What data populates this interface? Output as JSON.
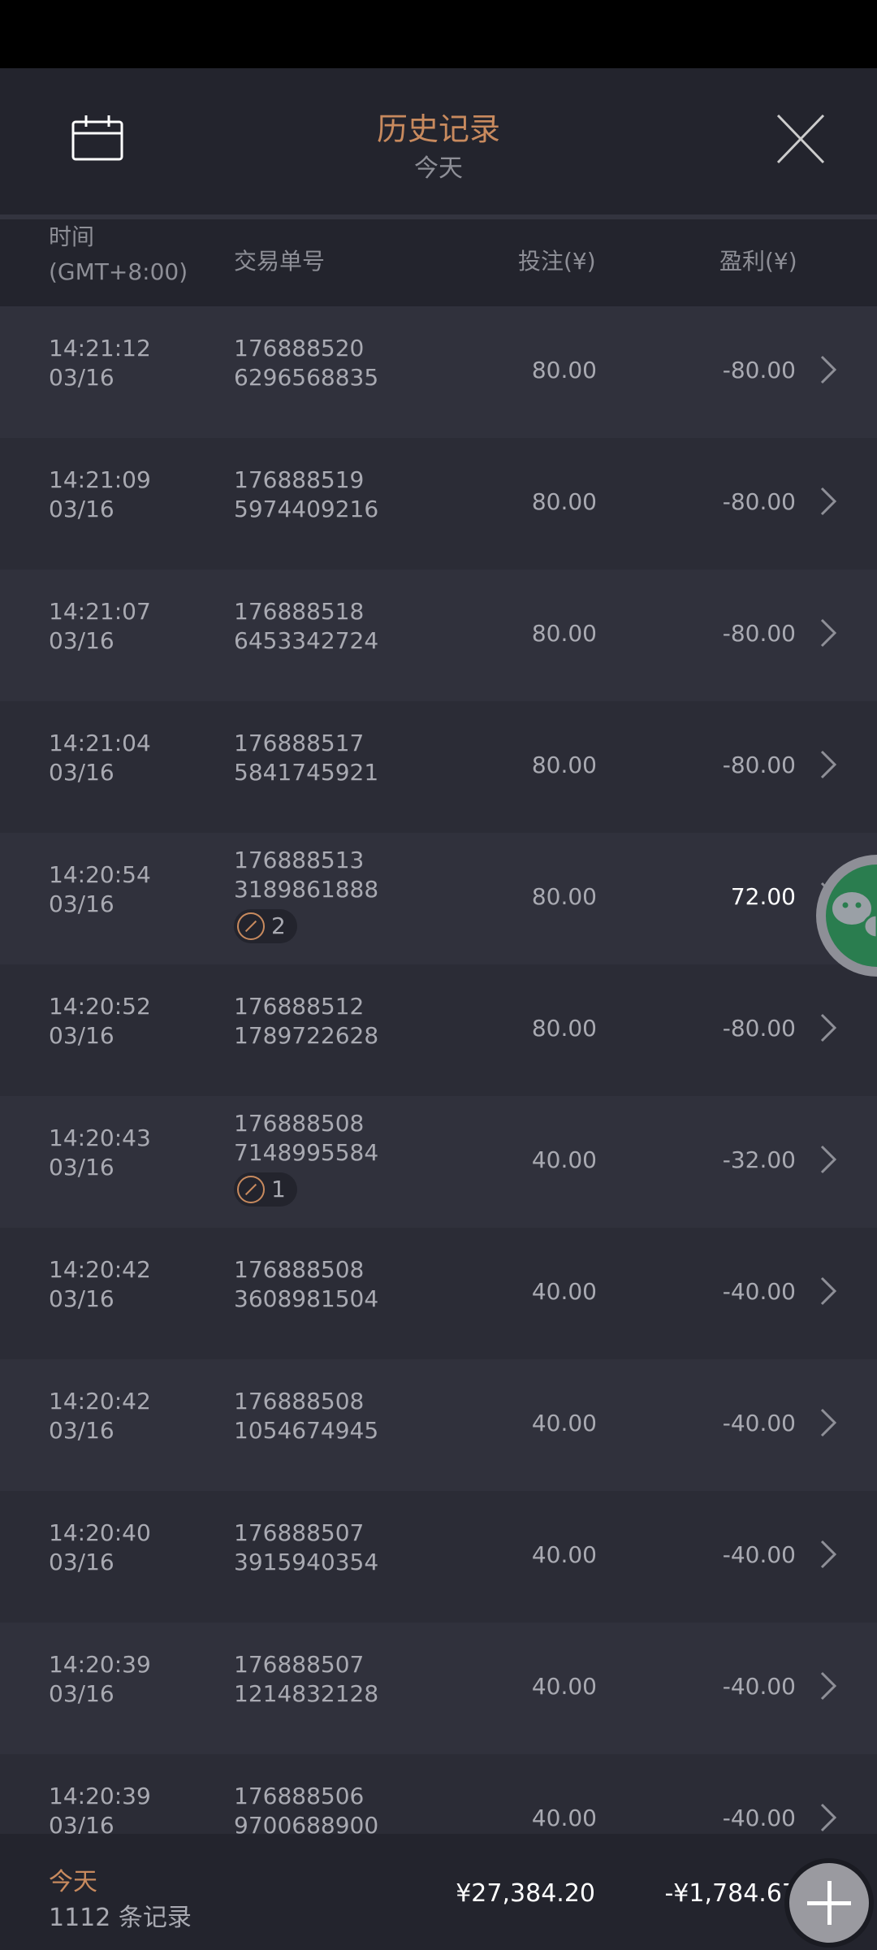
{
  "header": {
    "title": "历史记录",
    "subtitle": "今天",
    "left_icon": "calendar-icon",
    "right_icon": "close-icon"
  },
  "columns": {
    "time": "时间",
    "timezone": "(GMT+8:00)",
    "order": "交易单号",
    "bet": "投注(¥)",
    "profit": "盈利(¥)"
  },
  "rows": [
    {
      "time": "14:21:12",
      "date": "03/16",
      "order1": "176888520",
      "order2": "6296568835",
      "bet": "80.00",
      "profit": "-80.00"
    },
    {
      "time": "14:21:09",
      "date": "03/16",
      "order1": "176888519",
      "order2": "5974409216",
      "bet": "80.00",
      "profit": "-80.00"
    },
    {
      "time": "14:21:07",
      "date": "03/16",
      "order1": "176888518",
      "order2": "6453342724",
      "bet": "80.00",
      "profit": "-80.00"
    },
    {
      "time": "14:21:04",
      "date": "03/16",
      "order1": "176888517",
      "order2": "5841745921",
      "bet": "80.00",
      "profit": "-80.00"
    },
    {
      "time": "14:20:54",
      "date": "03/16",
      "order1": "176888513",
      "order2": "3189861888",
      "badge": "2",
      "bet": "80.00",
      "profit": "72.00"
    },
    {
      "time": "14:20:52",
      "date": "03/16",
      "order1": "176888512",
      "order2": "1789722628",
      "bet": "80.00",
      "profit": "-80.00"
    },
    {
      "time": "14:20:43",
      "date": "03/16",
      "order1": "176888508",
      "order2": "7148995584",
      "badge": "1",
      "bet": "40.00",
      "profit": "-32.00"
    },
    {
      "time": "14:20:42",
      "date": "03/16",
      "order1": "176888508",
      "order2": "3608981504",
      "bet": "40.00",
      "profit": "-40.00"
    },
    {
      "time": "14:20:42",
      "date": "03/16",
      "order1": "176888508",
      "order2": "1054674945",
      "bet": "40.00",
      "profit": "-40.00"
    },
    {
      "time": "14:20:40",
      "date": "03/16",
      "order1": "176888507",
      "order2": "3915940354",
      "bet": "40.00",
      "profit": "-40.00"
    },
    {
      "time": "14:20:39",
      "date": "03/16",
      "order1": "176888507",
      "order2": "1214832128",
      "bet": "40.00",
      "profit": "-40.00"
    },
    {
      "time": "14:20:39",
      "date": "03/16",
      "order1": "176888506",
      "order2": "9700688900",
      "bet": "40.00",
      "profit": "-40.00"
    }
  ],
  "footer": {
    "period": "今天",
    "count": "1112 条记录",
    "total_bet": "¥27,384.20",
    "total_profit": "-¥1,784.67"
  },
  "floating": {
    "chat_icon": "wechat-icon",
    "add_icon": "plus-icon"
  },
  "colors": {
    "accent": "#c88a5e",
    "background": "#23242d",
    "chat": "#2a7d4f"
  }
}
